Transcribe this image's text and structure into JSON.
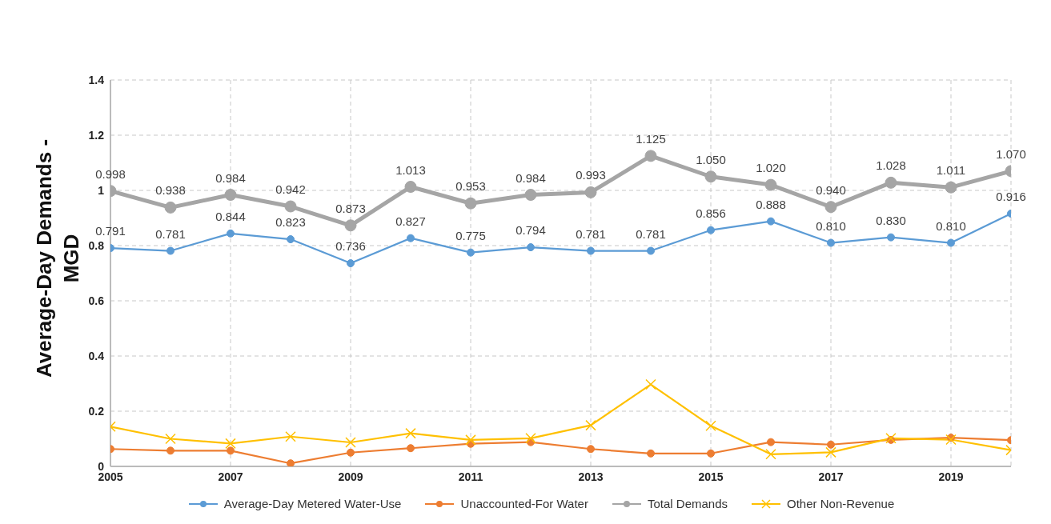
{
  "chart_data": {
    "type": "line",
    "ylabel": "Average-Day Demands - MGD",
    "x": [
      2005,
      2006,
      2007,
      2008,
      2009,
      2010,
      2011,
      2012,
      2013,
      2014,
      2015,
      2016,
      2017,
      2018,
      2019,
      2020
    ],
    "xlim": [
      2005,
      2020
    ],
    "xticks": [
      2005,
      2007,
      2009,
      2011,
      2013,
      2015,
      2017,
      2019
    ],
    "ylim": [
      0,
      1.4
    ],
    "yticks": [
      0,
      0.2,
      0.4,
      0.6,
      0.8,
      1,
      1.2,
      1.4
    ],
    "grid": true,
    "legend": "bottom",
    "line_style": "solid",
    "series": [
      {
        "name": "Average-Day Metered Water-Use",
        "color": "#5b9bd5",
        "marker": "circle",
        "values": [
          0.791,
          0.781,
          0.844,
          0.823,
          0.736,
          0.827,
          0.775,
          0.794,
          0.781,
          0.781,
          0.856,
          0.888,
          0.81,
          0.83,
          0.81,
          0.916
        ],
        "value_labels": [
          "0.791",
          "0.781",
          "0.844",
          "0.823",
          "0.736",
          "0.827",
          "0.775",
          "0.794",
          "0.781",
          "0.781",
          "0.856",
          "0.888",
          "0.810",
          "0.830",
          "0.810",
          "0.916"
        ]
      },
      {
        "name": "Unaccounted-For Water",
        "color": "#ed7d31",
        "marker": "circle",
        "values": [
          0.063,
          0.057,
          0.057,
          0.011,
          0.05,
          0.066,
          0.082,
          0.088,
          0.063,
          0.047,
          0.047,
          0.088,
          0.079,
          0.096,
          0.104,
          0.095
        ]
      },
      {
        "name": "Total Demands",
        "color": "#a5a5a5",
        "marker": "circle",
        "values": [
          0.998,
          0.938,
          0.984,
          0.942,
          0.873,
          1.013,
          0.953,
          0.984,
          0.993,
          1.125,
          1.05,
          1.02,
          0.94,
          1.028,
          1.011,
          1.07
        ],
        "value_labels": [
          "0.998",
          "0.938",
          "0.984",
          "0.942",
          "0.873",
          "1.013",
          "0.953",
          "0.984",
          "0.993",
          "1.125",
          "1.050",
          "1.020",
          "0.940",
          "1.028",
          "1.011",
          "1.070"
        ]
      },
      {
        "name": "Other Non-Revenue",
        "color": "#ffc000",
        "marker": "cross",
        "values": [
          0.144,
          0.1,
          0.083,
          0.108,
          0.087,
          0.12,
          0.096,
          0.102,
          0.149,
          0.297,
          0.147,
          0.044,
          0.051,
          0.102,
          0.097,
          0.059
        ]
      }
    ]
  }
}
